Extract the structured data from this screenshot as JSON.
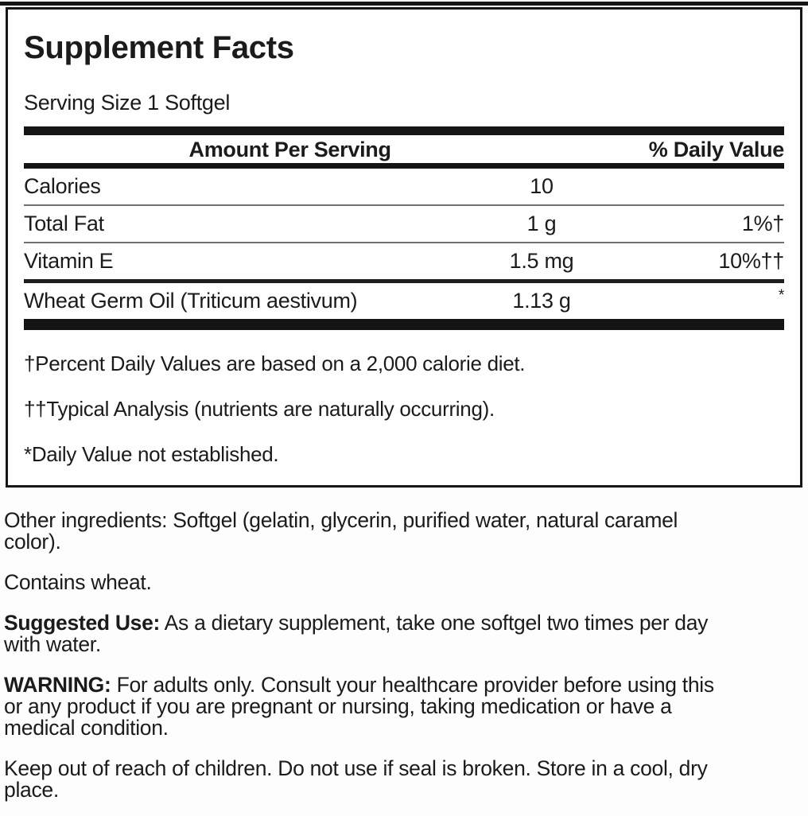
{
  "label": {
    "title": "Supplement Facts",
    "serving_size": "Serving Size 1 Softgel",
    "table": {
      "amount_header": "Amount Per Serving",
      "dv_header": "% Daily Value",
      "rows": [
        {
          "name": "Calories",
          "amount": "10",
          "dv": ""
        },
        {
          "name": "Total Fat",
          "amount": "1 g",
          "dv": "1%†"
        },
        {
          "name": "Vitamin E",
          "amount": "1.5 mg",
          "dv": "10%††"
        },
        {
          "name": "Wheat Germ Oil (Triticum aestivum)",
          "amount": "1.13 g",
          "dv": "*"
        }
      ]
    },
    "footnotes": [
      "†Percent Daily Values are based on a 2,000 calorie diet.",
      "††Typical Analysis (nutrients are naturally occurring).",
      "*Daily Value not established."
    ]
  },
  "info": {
    "other_ingredients": "Other ingredients: Softgel (gelatin, glycerin, purified water, natural caramel\ncolor).",
    "contains": "Contains wheat.",
    "suggested_use": {
      "lead": "Suggested Use:",
      "text": " As a dietary supplement, take one softgel two times per day\nwith water."
    },
    "warning": {
      "lead": "WARNING:",
      "text": " For adults only. Consult your healthcare provider before using this\nor any product if you are pregnant or nursing, taking medication or have a\nmedical condition."
    },
    "storage": "Keep out of reach of children. Do not use if seal is broken. Store in a cool, dry\nplace."
  },
  "colors": {
    "background": "#fdfdfd",
    "text": "#1b1b1b",
    "border": "#161616",
    "thin_rule": "#6f6f6f"
  }
}
